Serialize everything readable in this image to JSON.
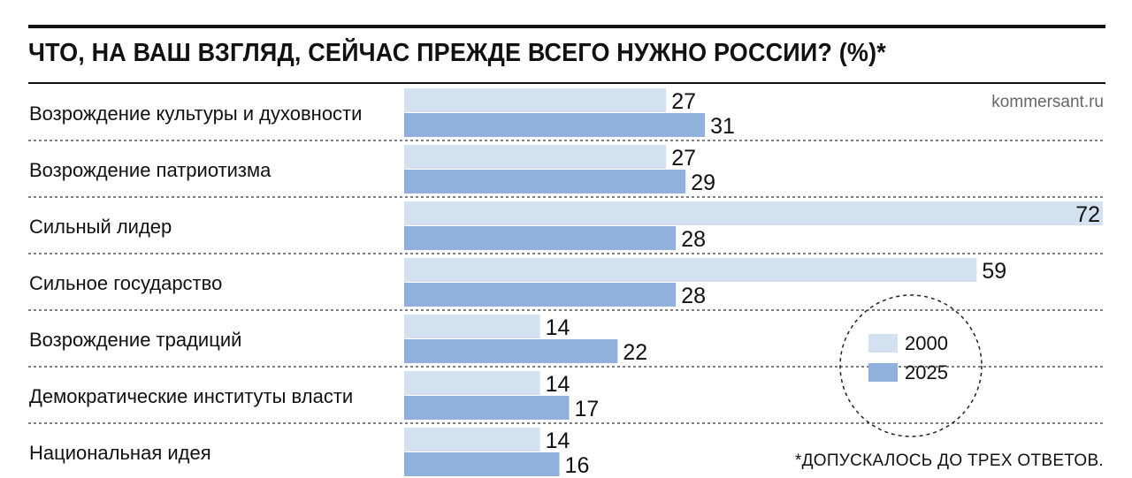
{
  "source": "kommersant.ru",
  "footnote": "*ДОПУСКАЛОСЬ ДО ТРЕХ ОТВЕТОВ.",
  "chart_data": {
    "type": "bar",
    "orientation": "horizontal",
    "title": "ЧТО, НА ВАШ ВЗГЛЯД, СЕЙЧАС ПРЕЖДЕ ВСЕГО НУЖНО РОССИИ? (%)*",
    "categories": [
      "Возрождение культуры и духовности",
      "Возрождение патриотизма",
      "Сильный лидер",
      "Сильное государство",
      "Возрождение традиций",
      "Демократические институты власти",
      "Национальная идея"
    ],
    "series": [
      {
        "name": "2000",
        "color": "#d3e1f1",
        "values": [
          27,
          27,
          72,
          59,
          14,
          14,
          14
        ]
      },
      {
        "name": "2025",
        "color": "#8fb1dc",
        "values": [
          31,
          29,
          28,
          28,
          22,
          17,
          16
        ]
      }
    ],
    "xlim": [
      0,
      72
    ],
    "grid": "dashed row separators",
    "legend": "bottom-right, inside dashed circle",
    "data_labels": true
  }
}
